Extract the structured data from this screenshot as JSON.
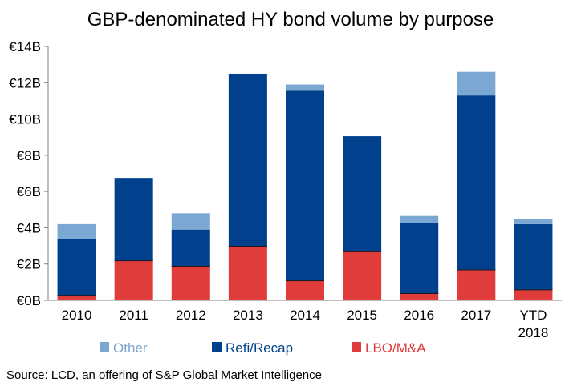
{
  "chart_data": {
    "type": "bar",
    "stacked": true,
    "title": "GBP-denominated HY bond volume by purpose",
    "categories": [
      "2010",
      "2011",
      "2012",
      "2013",
      "2014",
      "2015",
      "2016",
      "2017",
      "YTD 2018"
    ],
    "series": [
      {
        "name": "LBO/M&A",
        "color": "#e03c3c",
        "values": [
          0.3,
          2.2,
          1.9,
          3.0,
          1.1,
          2.7,
          0.4,
          1.7,
          0.6
        ]
      },
      {
        "name": "Refi/Recap",
        "color": "#00408c",
        "values": [
          3.1,
          4.55,
          2.0,
          9.5,
          10.45,
          6.35,
          3.85,
          9.6,
          3.6
        ]
      },
      {
        "name": "Other",
        "color": "#7ba7d3",
        "values": [
          0.8,
          0.0,
          0.9,
          0.0,
          0.35,
          0.0,
          0.4,
          1.3,
          0.3
        ]
      }
    ],
    "y_tick_labels": [
      "€0B",
      "€2B",
      "€4B",
      "€6B",
      "€8B",
      "€10B",
      "€12B",
      "€14B"
    ],
    "ylim": [
      0,
      14
    ],
    "legend_position": "bottom",
    "legend_order": [
      "Other",
      "Refi/Recap",
      "LBO/M&A"
    ]
  },
  "footer": {
    "source": "Source: LCD, an offering of S&P Global Market Intelligence"
  }
}
